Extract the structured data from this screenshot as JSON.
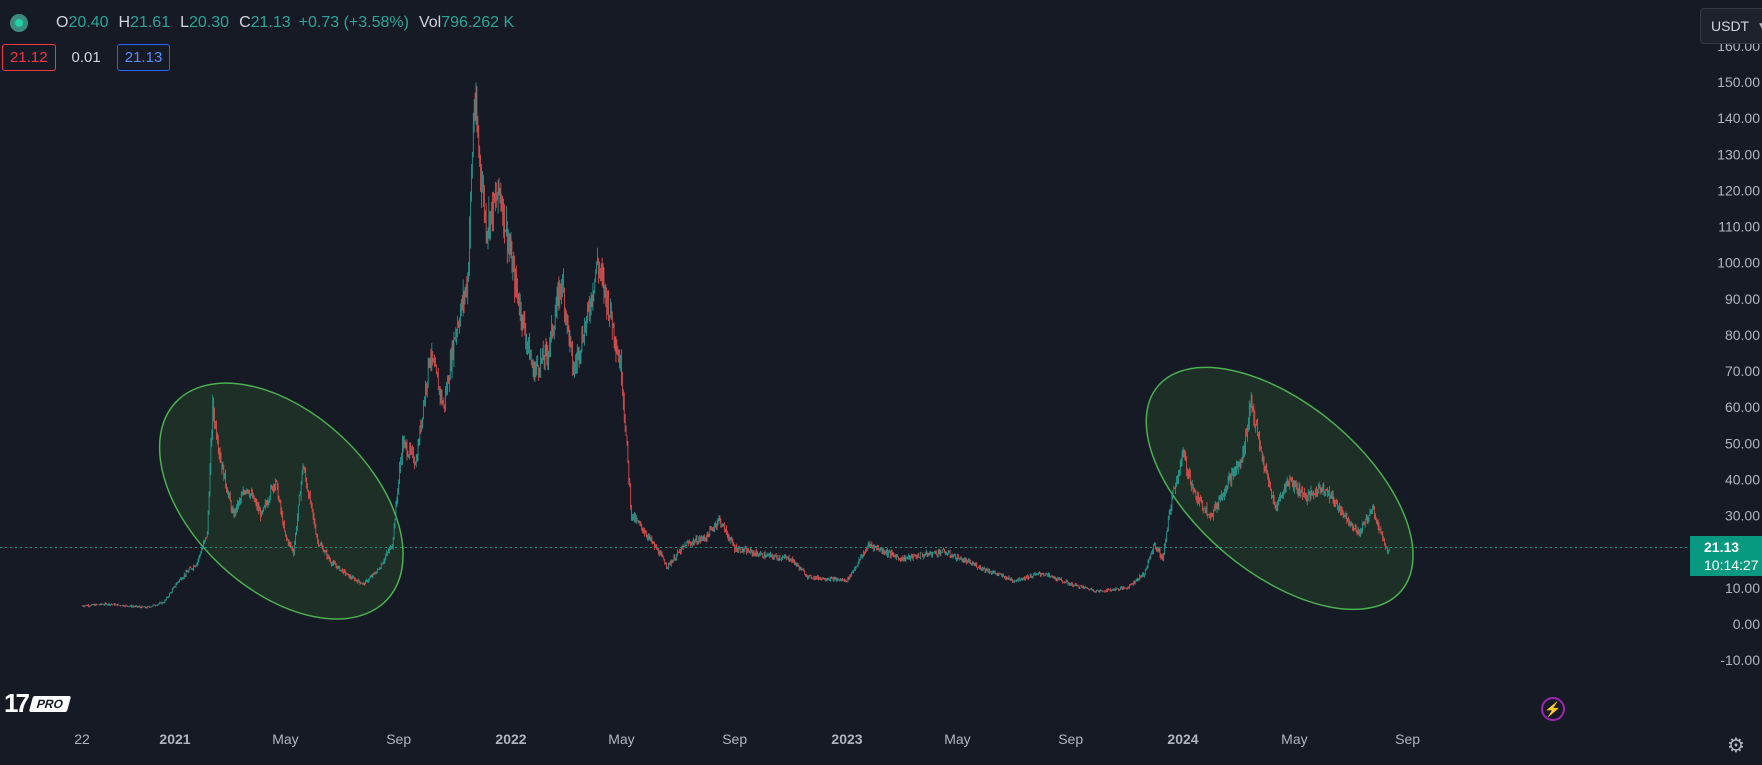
{
  "legend": {
    "open_label": "O",
    "open": "20.40",
    "high_label": "H",
    "high": "21.61",
    "low_label": "L",
    "low": "20.30",
    "close_label": "C",
    "close": "21.13",
    "change": "+0.73 (+3.58%)",
    "vol_label": "Vol",
    "vol": "796.262 K"
  },
  "bid_ask": {
    "bid": "21.12",
    "spread": "0.01",
    "ask": "21.13"
  },
  "currency": "USDT",
  "last_price": {
    "price": "21.13",
    "countdown": "10:14:27"
  },
  "logo_badge": "PRO",
  "icons": {
    "symbol": "symbol-status-icon",
    "chevron": "chevron-down-icon",
    "bolt": "lightning-icon",
    "gear": "gear-icon"
  },
  "colors": {
    "up": "#26a69a",
    "down": "#ef5350",
    "background": "#161a25",
    "ellipse_fill": "#1e3428",
    "ellipse_stroke": "#4caf50",
    "price_line": "#089981"
  },
  "chart_data": {
    "type": "candlestick",
    "ylim": [
      -10,
      160
    ],
    "y_ticks": [
      "160.00",
      "150.00",
      "140.00",
      "130.00",
      "120.00",
      "110.00",
      "100.00",
      "90.00",
      "80.00",
      "70.00",
      "60.00",
      "50.00",
      "40.00",
      "30.00",
      "20.00",
      "10.00",
      "0.00",
      "-10.00"
    ],
    "x_ticks": [
      "22",
      "2021",
      "May",
      "Sep",
      "2022",
      "May",
      "Sep",
      "2023",
      "May",
      "Sep",
      "2024",
      "May",
      "Sep"
    ],
    "x_tick_dates": [
      "2020-09-22",
      "2021-01-01",
      "2021-05-01",
      "2021-09-01",
      "2022-01-01",
      "2022-05-01",
      "2022-09-01",
      "2023-01-01",
      "2023-05-01",
      "2023-09-01",
      "2024-01-01",
      "2024-05-01",
      "2024-09-01"
    ],
    "x_tick_bold": [
      false,
      true,
      false,
      false,
      true,
      false,
      false,
      true,
      false,
      false,
      true,
      false,
      false
    ],
    "last_price": 21.13,
    "price_path": [
      [
        "2020-09-22",
        5
      ],
      [
        "2020-10-20",
        5.5
      ],
      [
        "2020-12-01",
        4.5
      ],
      [
        "2020-12-20",
        6
      ],
      [
        "2021-01-05",
        12
      ],
      [
        "2021-01-25",
        17
      ],
      [
        "2021-02-05",
        25
      ],
      [
        "2021-02-11",
        60
      ],
      [
        "2021-02-20",
        45
      ],
      [
        "2021-03-05",
        30
      ],
      [
        "2021-03-20",
        38
      ],
      [
        "2021-04-05",
        30
      ],
      [
        "2021-04-20",
        40
      ],
      [
        "2021-05-01",
        24
      ],
      [
        "2021-05-10",
        20
      ],
      [
        "2021-05-20",
        44
      ],
      [
        "2021-06-05",
        23
      ],
      [
        "2021-06-20",
        17
      ],
      [
        "2021-07-10",
        13
      ],
      [
        "2021-07-25",
        11
      ],
      [
        "2021-08-10",
        15
      ],
      [
        "2021-08-25",
        22
      ],
      [
        "2021-09-05",
        50
      ],
      [
        "2021-09-20",
        45
      ],
      [
        "2021-10-05",
        75
      ],
      [
        "2021-10-20",
        60
      ],
      [
        "2021-11-01",
        80
      ],
      [
        "2021-11-15",
        95
      ],
      [
        "2021-11-22",
        145
      ],
      [
        "2021-12-05",
        110
      ],
      [
        "2021-12-20",
        120
      ],
      [
        "2022-01-05",
        95
      ],
      [
        "2022-01-25",
        70
      ],
      [
        "2022-02-10",
        75
      ],
      [
        "2022-02-25",
        95
      ],
      [
        "2022-03-10",
        70
      ],
      [
        "2022-03-25",
        85
      ],
      [
        "2022-04-05",
        100
      ],
      [
        "2022-04-20",
        85
      ],
      [
        "2022-05-01",
        70
      ],
      [
        "2022-05-12",
        30
      ],
      [
        "2022-05-25",
        26
      ],
      [
        "2022-06-10",
        20
      ],
      [
        "2022-06-20",
        16
      ],
      [
        "2022-07-10",
        22
      ],
      [
        "2022-08-01",
        24
      ],
      [
        "2022-08-15",
        29
      ],
      [
        "2022-09-01",
        21
      ],
      [
        "2022-10-01",
        19
      ],
      [
        "2022-11-01",
        18
      ],
      [
        "2022-11-20",
        13
      ],
      [
        "2023-01-01",
        12
      ],
      [
        "2023-01-25",
        22
      ],
      [
        "2023-03-01",
        18
      ],
      [
        "2023-04-15",
        20
      ],
      [
        "2023-06-01",
        15
      ],
      [
        "2023-07-01",
        12
      ],
      [
        "2023-08-01",
        14
      ],
      [
        "2023-09-01",
        11
      ],
      [
        "2023-10-01",
        9
      ],
      [
        "2023-11-01",
        10
      ],
      [
        "2023-11-20",
        14
      ],
      [
        "2023-12-01",
        22
      ],
      [
        "2023-12-10",
        18
      ],
      [
        "2023-12-20",
        35
      ],
      [
        "2024-01-01",
        47
      ],
      [
        "2024-01-15",
        35
      ],
      [
        "2024-02-01",
        30
      ],
      [
        "2024-02-20",
        40
      ],
      [
        "2024-03-05",
        45
      ],
      [
        "2024-03-15",
        62
      ],
      [
        "2024-03-25",
        48
      ],
      [
        "2024-04-10",
        32
      ],
      [
        "2024-04-25",
        40
      ],
      [
        "2024-05-15",
        35
      ],
      [
        "2024-06-01",
        38
      ],
      [
        "2024-06-25",
        30
      ],
      [
        "2024-07-10",
        25
      ],
      [
        "2024-07-25",
        32
      ],
      [
        "2024-08-10",
        20
      ],
      [
        "2024-08-12",
        21.13
      ]
    ],
    "annotations": [
      {
        "shape": "ellipse",
        "from": "2021-01-01",
        "to": "2021-08-20",
        "y_low": 0,
        "y_high": 68,
        "tilt_deg": 43
      },
      {
        "shape": "ellipse",
        "from": "2023-12-10",
        "to": "2024-08-20",
        "y_low": 5,
        "y_high": 70,
        "tilt_deg": 40
      }
    ]
  }
}
